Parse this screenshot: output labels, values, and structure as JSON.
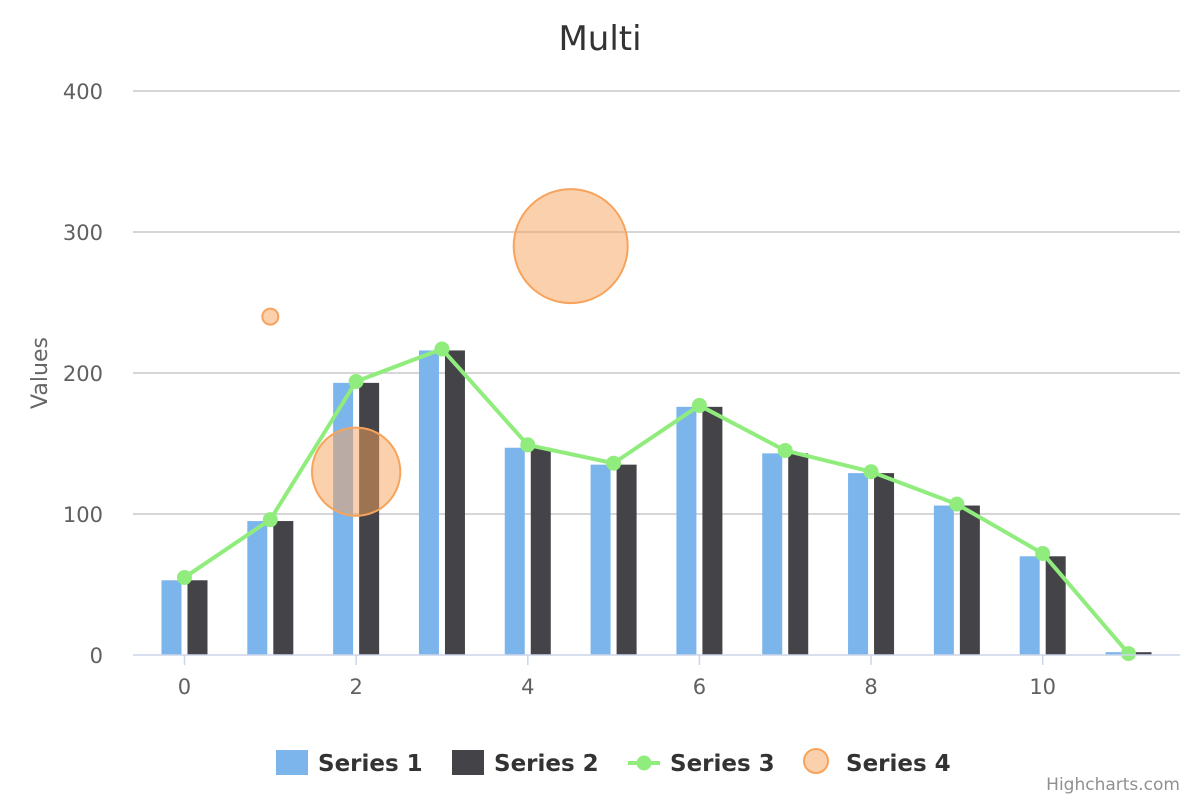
{
  "chart_data": {
    "type": "bar",
    "title": "Multi",
    "xlabel": "",
    "ylabel": "Values",
    "ylim": [
      0,
      400
    ],
    "yticks": [
      0,
      100,
      200,
      300,
      400
    ],
    "xlim": [
      -0.6,
      11.6
    ],
    "xticks": [
      0,
      2,
      4,
      6,
      8,
      10
    ],
    "categories": [
      0,
      1,
      2,
      3,
      4,
      5,
      6,
      7,
      8,
      9,
      10,
      11
    ],
    "grid": true,
    "legend_position": "bottom",
    "series": [
      {
        "name": "Series 1",
        "type": "bar",
        "color": "#7cb5ec",
        "values": [
          53,
          95,
          193,
          216,
          147,
          135,
          176,
          143,
          129,
          106,
          70,
          2
        ]
      },
      {
        "name": "Series 2",
        "type": "bar",
        "color": "#434348",
        "values": [
          53,
          95,
          193,
          216,
          147,
          135,
          176,
          143,
          129,
          106,
          70,
          2
        ]
      },
      {
        "name": "Series 3",
        "type": "line",
        "color": "#90ed7d",
        "values": [
          55,
          96,
          194,
          217,
          149,
          136,
          177,
          145,
          130,
          107,
          72,
          1
        ]
      },
      {
        "name": "Series 4",
        "type": "bubble",
        "color": "#f7a35c",
        "points": [
          {
            "x": 1,
            "y": 240,
            "z": 1
          },
          {
            "x": 2,
            "y": 130,
            "z": 30
          },
          {
            "x": 4.5,
            "y": 290,
            "z": 50
          }
        ]
      }
    ],
    "credits": "Highcharts.com"
  }
}
